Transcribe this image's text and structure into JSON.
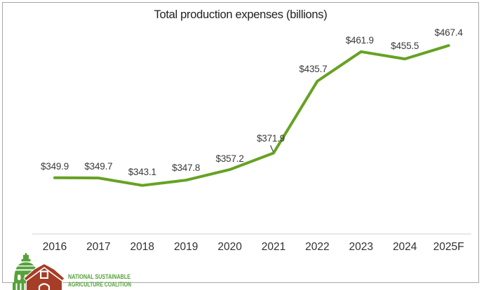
{
  "title": "Total production expenses (billions)",
  "chart_data": {
    "type": "line",
    "title": "Total production expenses (billions)",
    "series_name": "Total production expenses",
    "categories": [
      "2016",
      "2017",
      "2018",
      "2019",
      "2020",
      "2021",
      "2022",
      "2023",
      "2024",
      "2025F"
    ],
    "values": [
      349.9,
      349.7,
      343.1,
      347.8,
      357.2,
      371.9,
      435.7,
      461.9,
      455.5,
      467.4
    ],
    "data_labels": [
      "$349.9",
      "$349.7",
      "$343.1",
      "$347.8",
      "$357.2",
      "$371.9",
      "$435.7",
      "$461.9",
      "$455.5",
      "$467.4"
    ],
    "xlabel": "",
    "ylabel": "",
    "ylim": [
      300,
      485
    ],
    "grid": false,
    "legend": "none",
    "line_color": "#66a223"
  },
  "logo": {
    "line1": "NATIONAL SUSTAINABLE",
    "line2": "AGRICULTURE COALITION"
  },
  "colors": {
    "line_green": "#66a223",
    "title_text": "#1f1f1f",
    "label_text": "#3a3a3a",
    "tick_text": "#303030",
    "axis_line": "#d9d9d9",
    "frame_border": "#a6a6a6",
    "leader_line": "#404040",
    "logo_green": "#55a23a",
    "logo_red": "#a63d26"
  }
}
